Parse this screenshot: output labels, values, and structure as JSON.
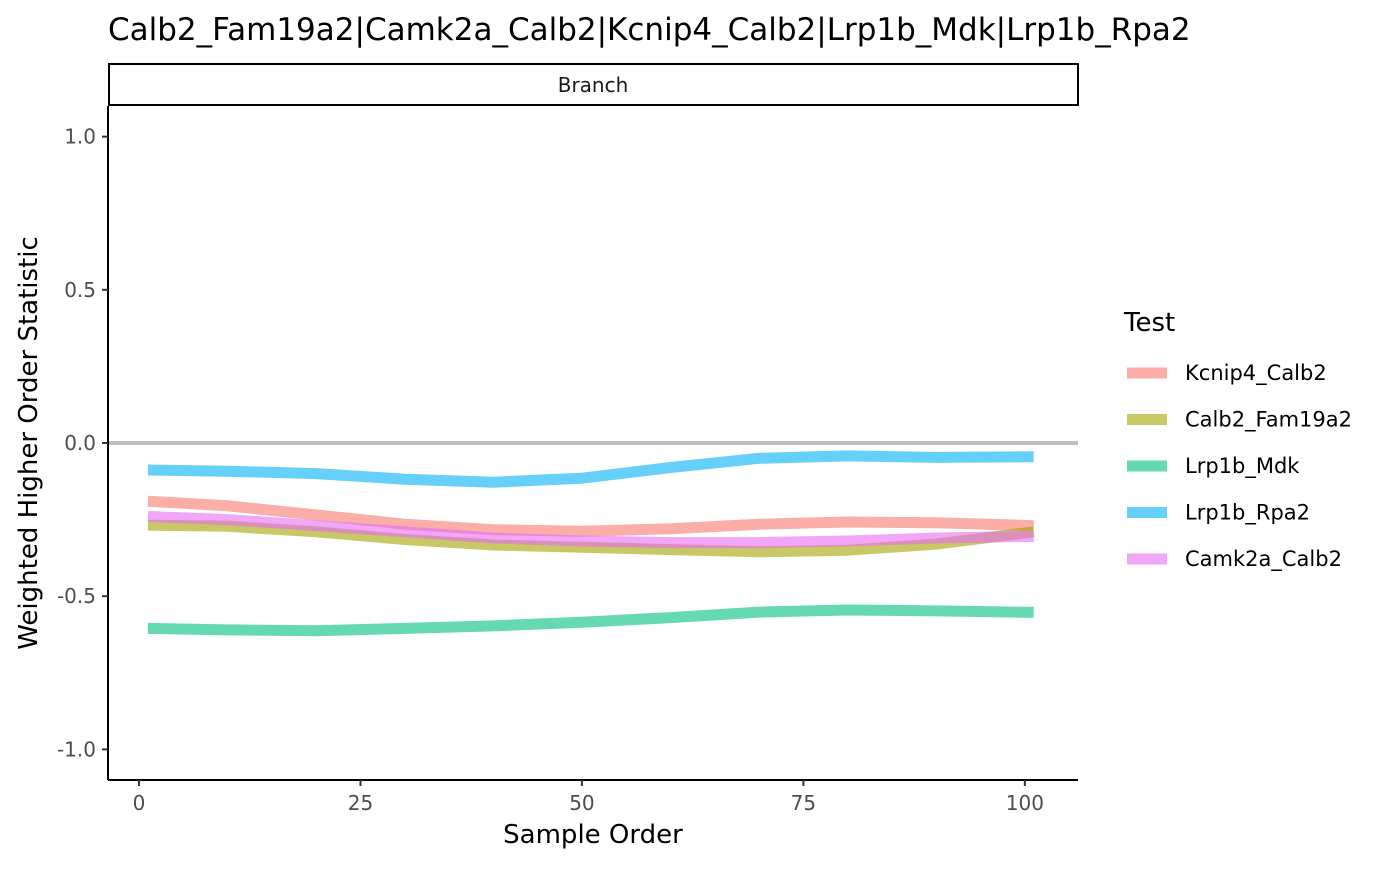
{
  "chart_data": {
    "type": "line",
    "title": "Calb2_Fam19a2|Camk2a_Calb2|Kcnip4_Calb2|Lrp1b_Mdk|Lrp1b_Rpa2",
    "facet_label": "Branch",
    "xlabel": "Sample Order",
    "ylabel": "Weighted Higher Order Statistic",
    "xlim": [
      -3.5,
      106
    ],
    "ylim": [
      -1.1,
      1.1
    ],
    "x_ticks": [
      0,
      25,
      50,
      75,
      100
    ],
    "x_tick_labels": [
      "0",
      "25",
      "50",
      "75",
      "100"
    ],
    "y_ticks": [
      1.0,
      0.5,
      0.0,
      -0.5,
      -1.0
    ],
    "y_tick_labels": [
      "1.0",
      "0.5",
      "0.0",
      "-0.5",
      "-1.0"
    ],
    "reference_line": {
      "y": 0,
      "color": "#bebebe"
    },
    "legend": {
      "title": "Test",
      "position": "right"
    },
    "grid": false,
    "series": [
      {
        "name": "Kcnip4_Calb2",
        "color": "#f8766d",
        "x": [
          1,
          10,
          20,
          30,
          40,
          50,
          60,
          70,
          80,
          90,
          101
        ],
        "y": [
          -0.19,
          -0.205,
          -0.235,
          -0.265,
          -0.283,
          -0.288,
          -0.28,
          -0.265,
          -0.258,
          -0.26,
          -0.27
        ]
      },
      {
        "name": "Calb2_Fam19a2",
        "color": "#a3a500",
        "x": [
          1,
          10,
          20,
          30,
          40,
          50,
          60,
          70,
          80,
          90,
          101
        ],
        "y": [
          -0.268,
          -0.272,
          -0.29,
          -0.315,
          -0.333,
          -0.34,
          -0.348,
          -0.355,
          -0.35,
          -0.33,
          -0.29
        ]
      },
      {
        "name": "Lrp1b_Mdk",
        "color": "#00bf7d",
        "x": [
          1,
          10,
          20,
          30,
          40,
          50,
          60,
          70,
          80,
          90,
          101
        ],
        "y": [
          -0.605,
          -0.61,
          -0.613,
          -0.605,
          -0.597,
          -0.585,
          -0.57,
          -0.552,
          -0.545,
          -0.548,
          -0.553
        ]
      },
      {
        "name": "Lrp1b_Rpa2",
        "color": "#00b0f6",
        "x": [
          1,
          10,
          20,
          30,
          40,
          50,
          60,
          70,
          80,
          90,
          101
        ],
        "y": [
          -0.088,
          -0.092,
          -0.1,
          -0.118,
          -0.128,
          -0.115,
          -0.08,
          -0.05,
          -0.042,
          -0.047,
          -0.045
        ]
      },
      {
        "name": "Camk2a_Calb2",
        "color": "#e76bf3",
        "x": [
          1,
          10,
          20,
          30,
          40,
          50,
          60,
          70,
          80,
          90,
          101
        ],
        "y": [
          -0.24,
          -0.25,
          -0.27,
          -0.29,
          -0.31,
          -0.32,
          -0.325,
          -0.325,
          -0.32,
          -0.31,
          -0.305
        ]
      }
    ]
  }
}
